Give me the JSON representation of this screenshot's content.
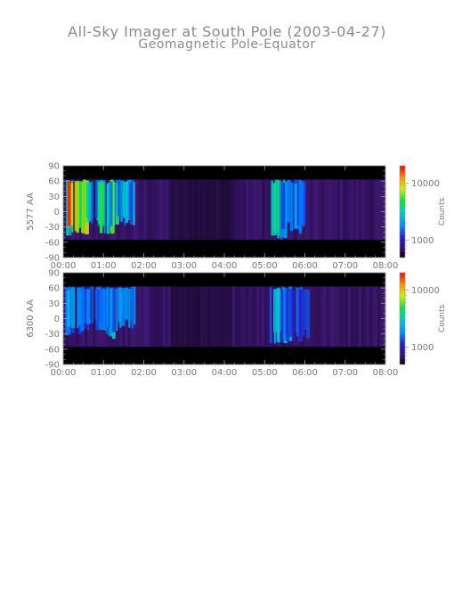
{
  "header": {
    "title": "All-Sky Imager at South Pole (2003-04-27)",
    "subtitle": "Geomagnetic Pole-Equator"
  },
  "colors": {
    "no_data": "#000000",
    "background": "#3a1560",
    "axis_text": "#777777"
  },
  "chart_data": [
    {
      "type": "heatmap",
      "ylabel": "5577 AA",
      "x_ticks": [
        "00:00",
        "01:00",
        "02:00",
        "03:00",
        "04:00",
        "05:00",
        "06:00",
        "07:00",
        "08:00"
      ],
      "y_ticks": [
        90,
        60,
        30,
        0,
        -30,
        -60,
        -90
      ],
      "xlim_hours": [
        0,
        8
      ],
      "ylim": [
        -90,
        90
      ],
      "valid_lat_range": [
        -55,
        63
      ],
      "colorbar": {
        "label": "Counts",
        "ticks": [
          "10000",
          "1000"
        ],
        "scale": "log",
        "range": [
          500,
          20000
        ]
      },
      "bursts": [
        {
          "t_start": 0.02,
          "t_end": 0.55,
          "lat_min": -50,
          "lat_max": 63,
          "intensity": 1.0
        },
        {
          "t_start": 0.55,
          "t_end": 0.95,
          "lat_min": -35,
          "lat_max": 63,
          "intensity": 0.55
        },
        {
          "t_start": 0.9,
          "t_end": 1.3,
          "lat_min": -45,
          "lat_max": 63,
          "intensity": 0.65
        },
        {
          "t_start": 1.3,
          "t_end": 1.75,
          "lat_min": -30,
          "lat_max": 63,
          "intensity": 0.45
        },
        {
          "t_start": 5.15,
          "t_end": 5.55,
          "lat_min": -55,
          "lat_max": 63,
          "intensity": 0.5
        },
        {
          "t_start": 5.55,
          "t_end": 5.95,
          "lat_min": -45,
          "lat_max": 63,
          "intensity": 0.35
        }
      ]
    },
    {
      "type": "heatmap",
      "ylabel": "6300 AA",
      "x_ticks": [
        "00:00",
        "01:00",
        "02:00",
        "03:00",
        "04:00",
        "05:00",
        "06:00",
        "07:00",
        "08:00"
      ],
      "y_ticks": [
        90,
        60,
        30,
        0,
        -30,
        -60,
        -90
      ],
      "xlim_hours": [
        0,
        8
      ],
      "ylim": [
        -90,
        90
      ],
      "valid_lat_range": [
        -55,
        63
      ],
      "colorbar": {
        "label": "Counts",
        "ticks": [
          "10000",
          "1000"
        ],
        "scale": "log",
        "range": [
          500,
          20000
        ]
      },
      "bursts": [
        {
          "t_start": 0.02,
          "t_end": 0.5,
          "lat_min": -35,
          "lat_max": 63,
          "intensity": 0.4
        },
        {
          "t_start": 0.5,
          "t_end": 1.0,
          "lat_min": -25,
          "lat_max": 63,
          "intensity": 0.35
        },
        {
          "t_start": 1.0,
          "t_end": 1.35,
          "lat_min": -40,
          "lat_max": 63,
          "intensity": 0.4
        },
        {
          "t_start": 1.35,
          "t_end": 1.75,
          "lat_min": -20,
          "lat_max": 63,
          "intensity": 0.35
        },
        {
          "t_start": 5.1,
          "t_end": 5.5,
          "lat_min": -50,
          "lat_max": 63,
          "intensity": 0.45
        },
        {
          "t_start": 5.5,
          "t_end": 6.05,
          "lat_min": -45,
          "lat_max": 63,
          "intensity": 0.35
        }
      ]
    }
  ]
}
